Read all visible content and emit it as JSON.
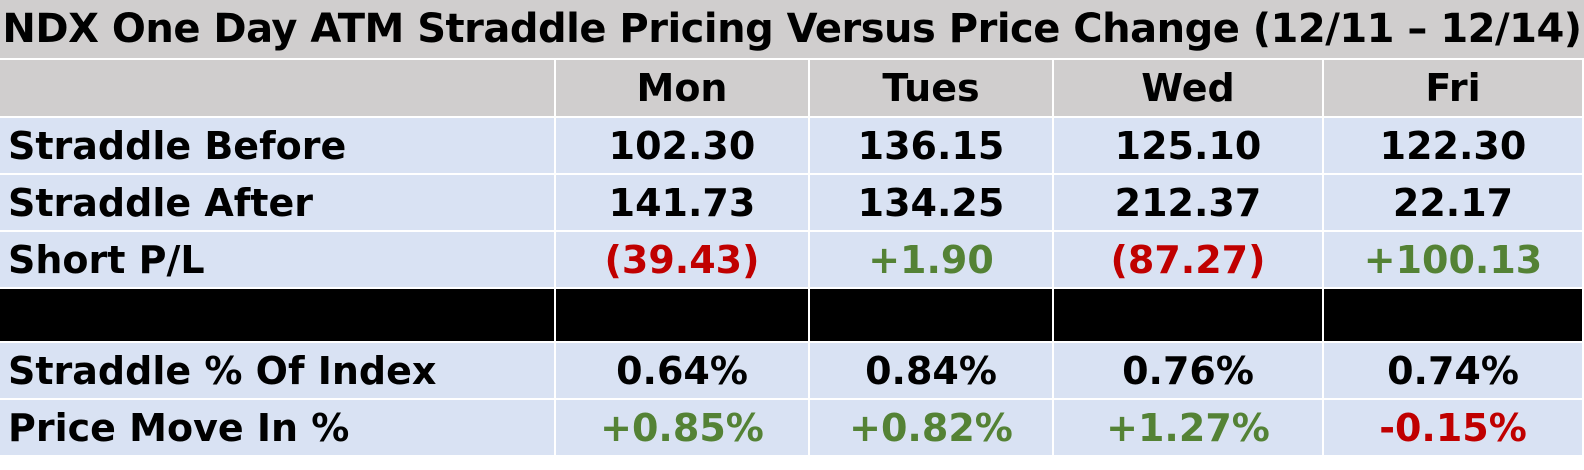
{
  "chart_data": {
    "type": "table",
    "title": "NDX One Day ATM Straddle Pricing Versus Price Change (12/11 – 12/14)",
    "columns": [
      "Mon",
      "Tues",
      "Wed",
      "Fri"
    ],
    "rows": [
      {
        "label": "Straddle Before",
        "values": [
          "102.30",
          "136.15",
          "125.10",
          "122.30"
        ],
        "status": [
          "",
          "",
          "",
          ""
        ]
      },
      {
        "label": "Straddle After",
        "values": [
          "141.73",
          "134.25",
          "212.37",
          "22.17"
        ],
        "status": [
          "",
          "",
          "",
          ""
        ]
      },
      {
        "label": "Short P/L",
        "values": [
          "(39.43)",
          "+1.90",
          "(87.27)",
          "+100.13"
        ],
        "status": [
          "neg",
          "pos",
          "neg",
          "pos"
        ]
      },
      {
        "label": "Straddle % Of Index",
        "values": [
          "0.64%",
          "0.84%",
          "0.76%",
          "0.74%"
        ],
        "status": [
          "",
          "",
          "",
          ""
        ]
      },
      {
        "label": "Price Move In %",
        "values": [
          "+0.85%",
          "+0.82%",
          "+1.27%",
          "-0.15%"
        ],
        "status": [
          "pos",
          "pos",
          "pos",
          "neg"
        ]
      }
    ],
    "colors": {
      "header_background": "#d0cece",
      "row_background": "#d9e2f3",
      "separator_row": "#000000",
      "negative": "#c00000",
      "positive": "#548235"
    }
  }
}
